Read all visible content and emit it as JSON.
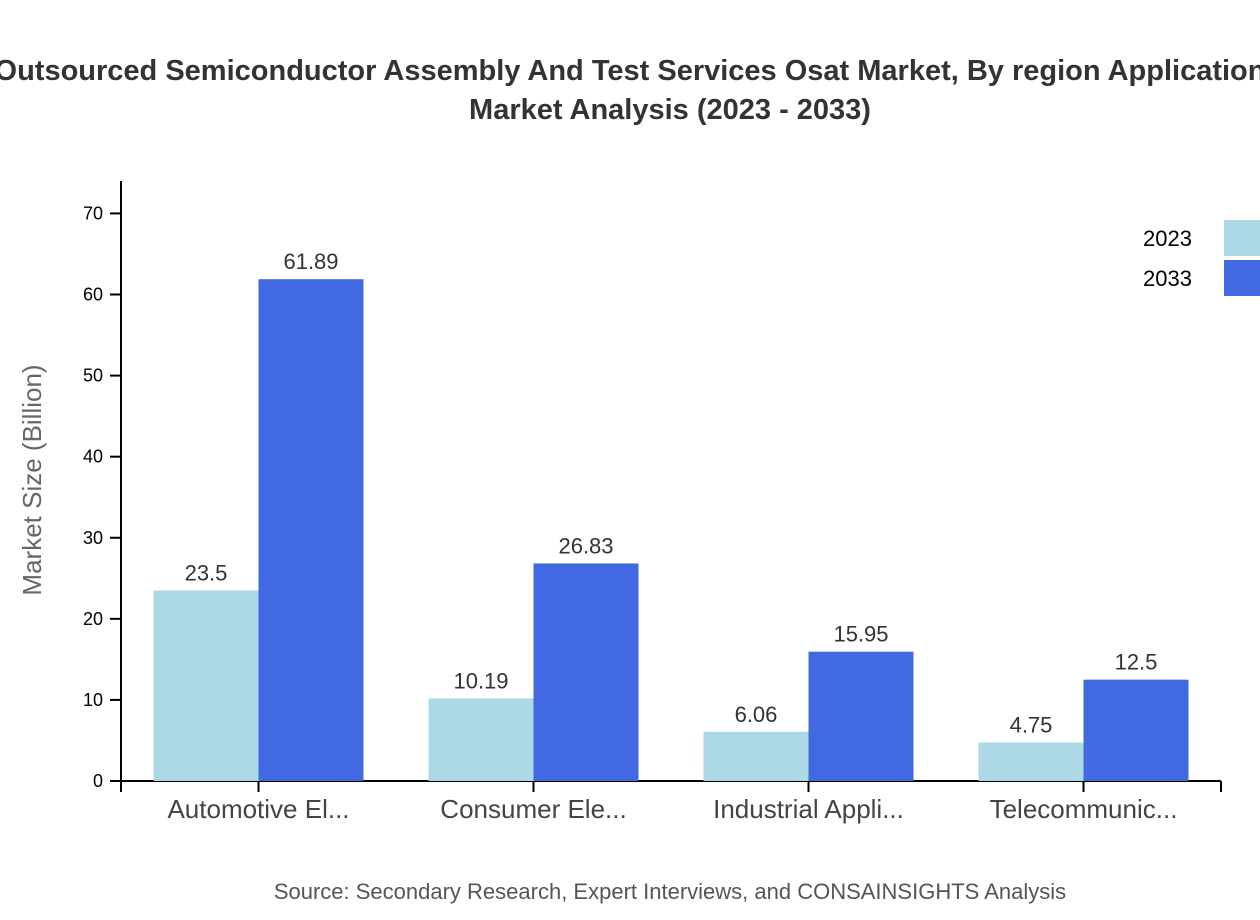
{
  "chart_data": {
    "type": "bar",
    "title_lines": [
      "Outsourced Semiconductor Assembly And Test Services Osat Market, By region Application",
      "Market Analysis (2023 - 2033)"
    ],
    "ylabel": "Market Size (Billion)",
    "xlabel": "",
    "ylim": [
      0,
      74
    ],
    "yticks": [
      0,
      10,
      20,
      30,
      40,
      50,
      60,
      70
    ],
    "categories": [
      "Automotive El...",
      "Consumer Ele...",
      "Industrial Appli...",
      "Telecommunic..."
    ],
    "series": [
      {
        "name": "2023",
        "color": "#add8e6",
        "values": [
          23.5,
          10.19,
          6.06,
          4.75
        ]
      },
      {
        "name": "2033",
        "color": "#4169e1",
        "values": [
          61.89,
          26.83,
          15.95,
          12.5
        ]
      }
    ],
    "legend_position": "top-right",
    "grid": false,
    "source": "Source: Secondary Research, Expert Interviews, and CONSAINSIGHTS Analysis"
  }
}
